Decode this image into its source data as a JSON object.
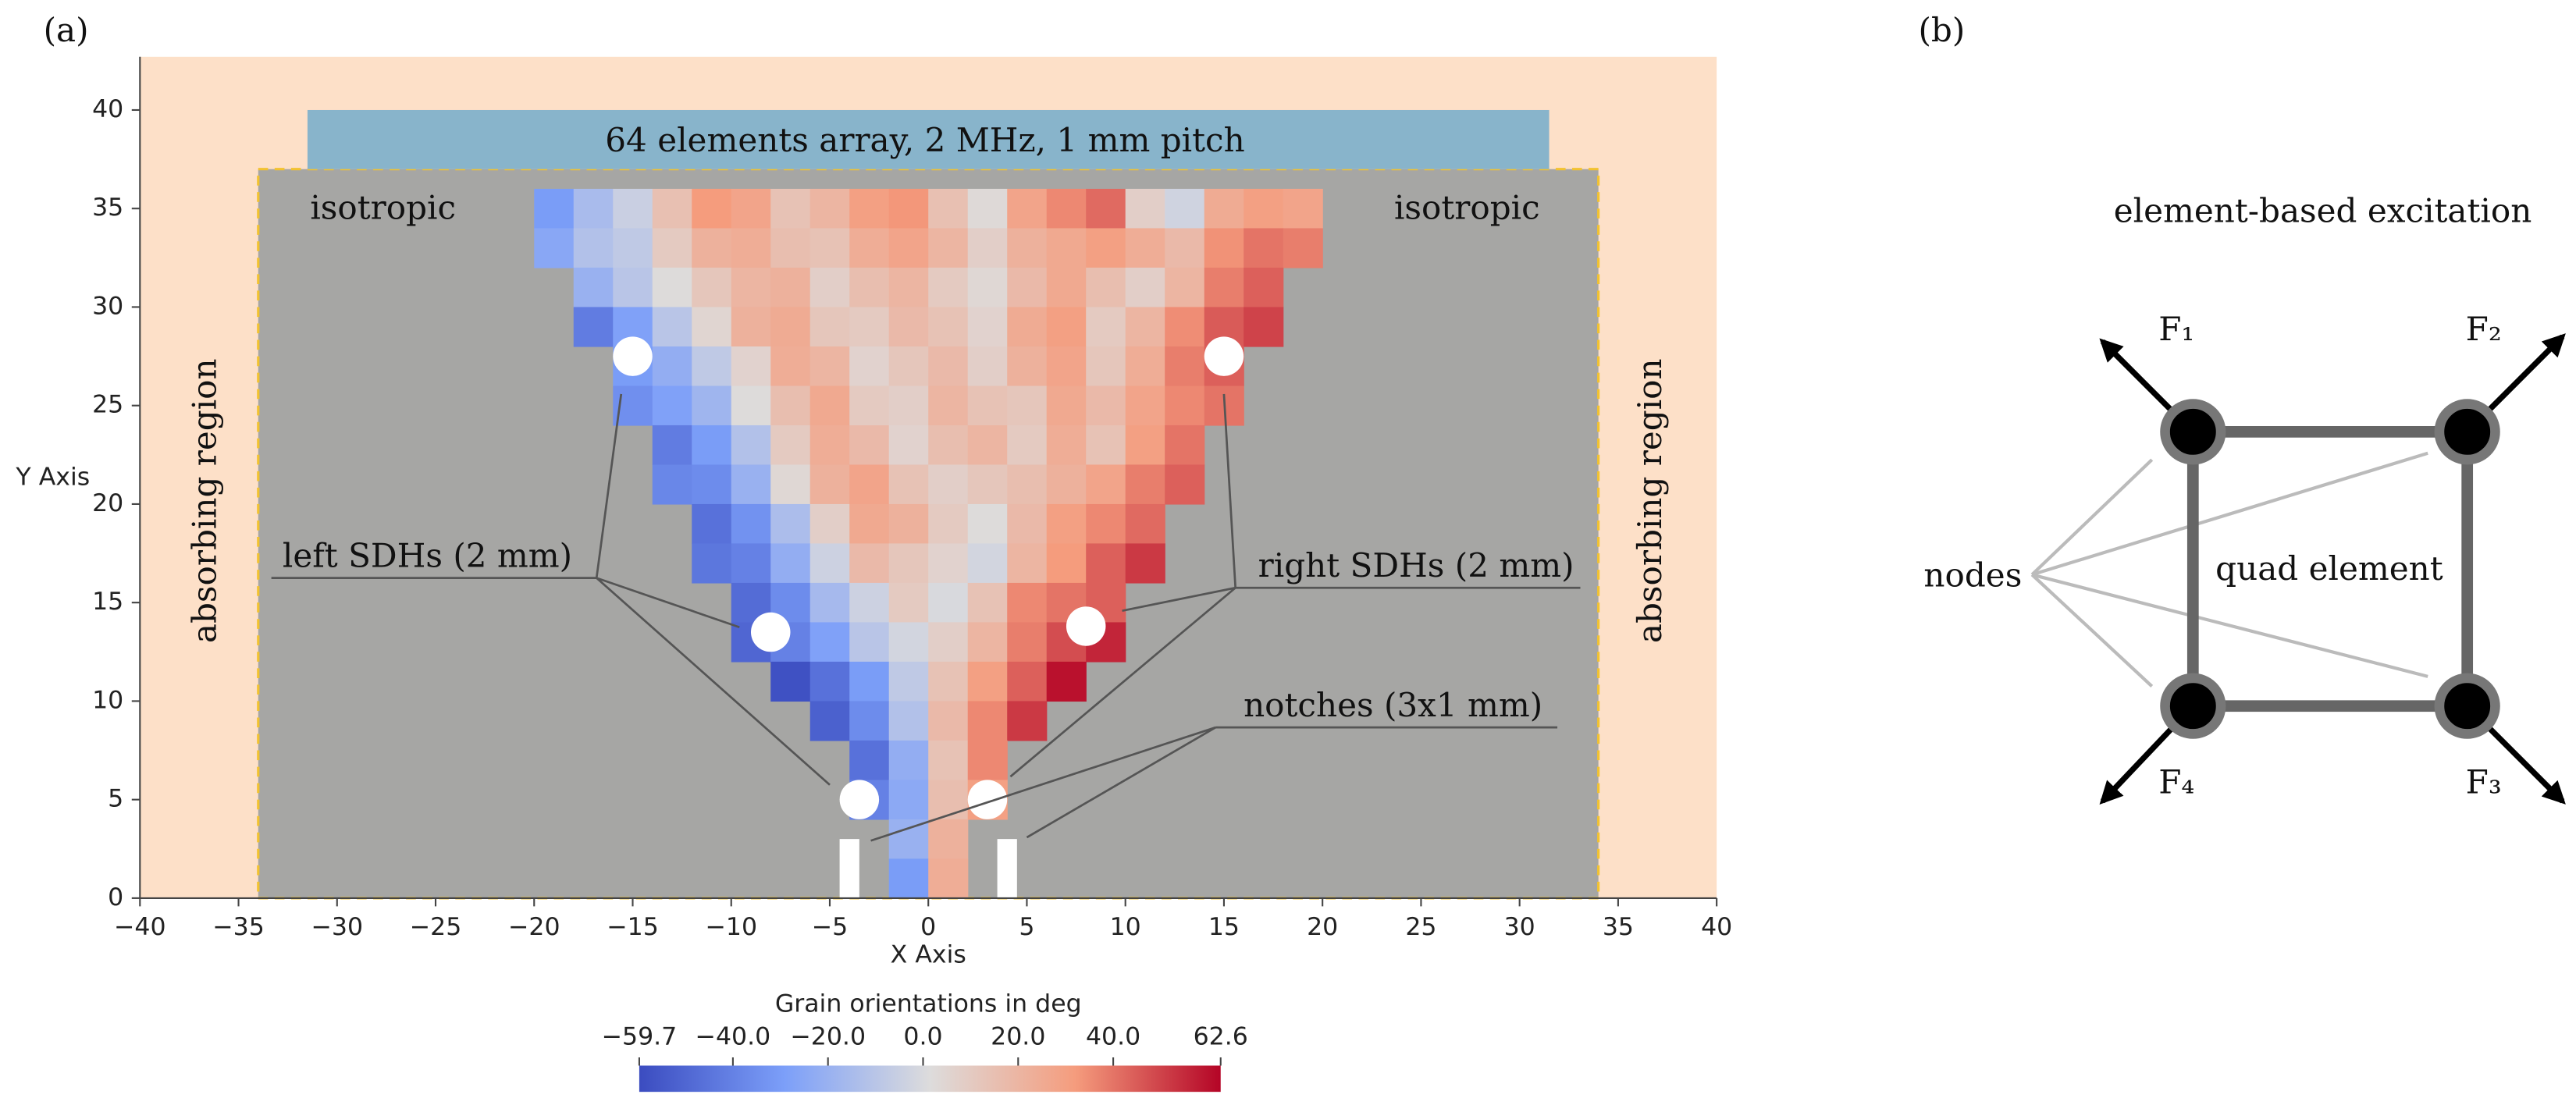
{
  "panel_labels": [
    "(a)",
    "(b)"
  ],
  "chart_data": {
    "type": "heatmap",
    "xlabel": "X Axis",
    "ylabel": "Y Axis",
    "xlim": [
      -40,
      40
    ],
    "ylim": [
      0,
      42.7
    ],
    "xticks": [
      {
        "value": -40,
        "label": "−40"
      },
      {
        "value": -35,
        "label": "−35"
      },
      {
        "value": -30,
        "label": "−30"
      },
      {
        "value": -25,
        "label": "−25"
      },
      {
        "value": -20,
        "label": "−20"
      },
      {
        "value": -15,
        "label": "−15"
      },
      {
        "value": -10,
        "label": "−10"
      },
      {
        "value": -5,
        "label": "−5"
      },
      0,
      5,
      10,
      15,
      20,
      25,
      30,
      35,
      40
    ],
    "yticks": [
      0,
      5,
      10,
      15,
      20,
      25,
      30,
      35,
      40
    ],
    "regions": [
      {
        "x0": -40,
        "x1": 40,
        "y0": 0,
        "y1": 42.7,
        "color": "#fde0c8"
      },
      {
        "x0": -34,
        "x1": 34,
        "y0": 0,
        "y1": 37,
        "color": "#a6a6a4",
        "border": "#f2c230"
      },
      {
        "x0": -31.5,
        "x1": 31.5,
        "y0": 37,
        "y1": 40,
        "color": "#88b4cb"
      }
    ],
    "x": [
      -19,
      -17,
      -15,
      -13,
      -11,
      -9,
      -7,
      -5,
      -3,
      -1,
      1,
      3,
      5,
      7,
      9,
      11,
      13,
      15,
      17,
      19
    ],
    "y": [
      35,
      33,
      31,
      29,
      27,
      25,
      23,
      21,
      19,
      17,
      15,
      13,
      11,
      9,
      7,
      5,
      3,
      1
    ],
    "values": [
      [
        -30,
        -15,
        -5,
        15,
        32,
        28,
        14,
        20,
        30,
        33,
        15,
        3,
        28,
        36,
        42,
        8,
        -3,
        25,
        30,
        28
      ],
      [
        -25,
        -12,
        -8,
        10,
        22,
        24,
        16,
        14,
        24,
        28,
        20,
        8,
        22,
        26,
        30,
        24,
        18,
        34,
        40,
        38
      ],
      [
        null,
        -20,
        -10,
        2,
        12,
        20,
        22,
        8,
        16,
        20,
        10,
        4,
        18,
        26,
        16,
        8,
        20,
        38,
        44,
        null
      ],
      [
        null,
        -42,
        -28,
        -10,
        5,
        22,
        25,
        12,
        10,
        18,
        14,
        6,
        25,
        30,
        10,
        20,
        35,
        45,
        50,
        null
      ],
      [
        null,
        null,
        -30,
        -22,
        -8,
        6,
        24,
        20,
        6,
        12,
        18,
        8,
        22,
        28,
        12,
        24,
        38,
        44,
        null,
        null
      ],
      [
        null,
        null,
        -35,
        -28,
        -18,
        2,
        16,
        26,
        10,
        8,
        20,
        14,
        12,
        26,
        18,
        28,
        36,
        40,
        null,
        null
      ],
      [
        null,
        null,
        null,
        -42,
        -30,
        -12,
        10,
        24,
        18,
        6,
        16,
        20,
        10,
        24,
        14,
        30,
        40,
        null,
        null,
        null
      ],
      [
        null,
        null,
        null,
        -38,
        -36,
        -20,
        4,
        22,
        28,
        14,
        8,
        12,
        16,
        22,
        28,
        38,
        44,
        null,
        null,
        null
      ],
      [
        null,
        null,
        null,
        null,
        -46,
        -34,
        -14,
        8,
        26,
        22,
        10,
        2,
        18,
        30,
        36,
        42,
        null,
        null,
        null,
        null
      ],
      [
        null,
        null,
        null,
        null,
        -44,
        -40,
        -22,
        -4,
        18,
        12,
        6,
        -2,
        20,
        32,
        44,
        52,
        null,
        null,
        null,
        null
      ],
      [
        null,
        null,
        null,
        null,
        null,
        -48,
        -36,
        -16,
        -4,
        10,
        0,
        14,
        36,
        40,
        44,
        null,
        null,
        null,
        null,
        null
      ],
      [
        null,
        null,
        null,
        null,
        null,
        -50,
        -40,
        -28,
        -10,
        -2,
        8,
        20,
        38,
        48,
        56,
        null,
        null,
        null,
        null,
        null
      ],
      [
        null,
        null,
        null,
        null,
        null,
        null,
        -58,
        -46,
        -30,
        -8,
        14,
        30,
        44,
        60,
        null,
        null,
        null,
        null,
        null,
        null
      ],
      [
        null,
        null,
        null,
        null,
        null,
        null,
        null,
        -52,
        -36,
        -12,
        18,
        36,
        52,
        null,
        null,
        null,
        null,
        null,
        null,
        null
      ],
      [
        null,
        null,
        null,
        null,
        null,
        null,
        null,
        null,
        -46,
        -22,
        14,
        36,
        null,
        null,
        null,
        null,
        null,
        null,
        null,
        null
      ],
      [
        null,
        null,
        null,
        null,
        null,
        null,
        null,
        null,
        -40,
        -24,
        16,
        30,
        null,
        null,
        null,
        null,
        null,
        null,
        null,
        null
      ],
      [
        null,
        null,
        null,
        null,
        null,
        null,
        null,
        null,
        null,
        -20,
        22,
        null,
        null,
        null,
        null,
        null,
        null,
        null,
        null,
        null
      ],
      [
        null,
        null,
        null,
        null,
        null,
        null,
        null,
        null,
        null,
        -30,
        24,
        null,
        null,
        null,
        null,
        null,
        null,
        null,
        null,
        null
      ]
    ],
    "colormap": [
      "#3b4cc0",
      "#7c9ff9",
      "#dddcdc",
      "#f59c7d",
      "#b40426"
    ],
    "colorbar_label": "Grain orientations in deg",
    "clim": [
      -59.7,
      62.6
    ],
    "cticks": [
      {
        "value": -59.7,
        "label": "−59.7"
      },
      {
        "value": -40,
        "label": "−40.0"
      },
      {
        "value": -20,
        "label": "−20.0"
      },
      {
        "value": 0,
        "label": "0.0"
      },
      {
        "value": 20,
        "label": "20.0"
      },
      {
        "value": 40,
        "label": "40.0"
      },
      62.6
    ],
    "holes": [
      {
        "x": -15,
        "y": 27.5,
        "d": 2
      },
      {
        "x": 15,
        "y": 27.5,
        "d": 2
      },
      {
        "x": -8,
        "y": 13.5,
        "d": 2
      },
      {
        "x": 8,
        "y": 13.8,
        "d": 2
      },
      {
        "x": -3.5,
        "y": 5,
        "d": 2
      },
      {
        "x": 3,
        "y": 5,
        "d": 2
      }
    ],
    "notches": [
      {
        "x0": -4.5,
        "x1": -3.5,
        "h": 3
      },
      {
        "x0": 3.5,
        "x1": 4.5,
        "h": 3
      }
    ],
    "annotations": [
      "64 elements array, 2 MHz, 1 mm pitch",
      "isotropic",
      "isotropic",
      "absorbing region",
      "absorbing region",
      "left SDHs (2 mm)",
      "right SDHs (2 mm)",
      "notches (3x1 mm)"
    ]
  },
  "diagram": {
    "title": "element-based excitation",
    "forces": [
      "F₁",
      "F₂",
      "F₃",
      "F₄"
    ],
    "nodes_label": "nodes",
    "element_label": "quad element"
  }
}
